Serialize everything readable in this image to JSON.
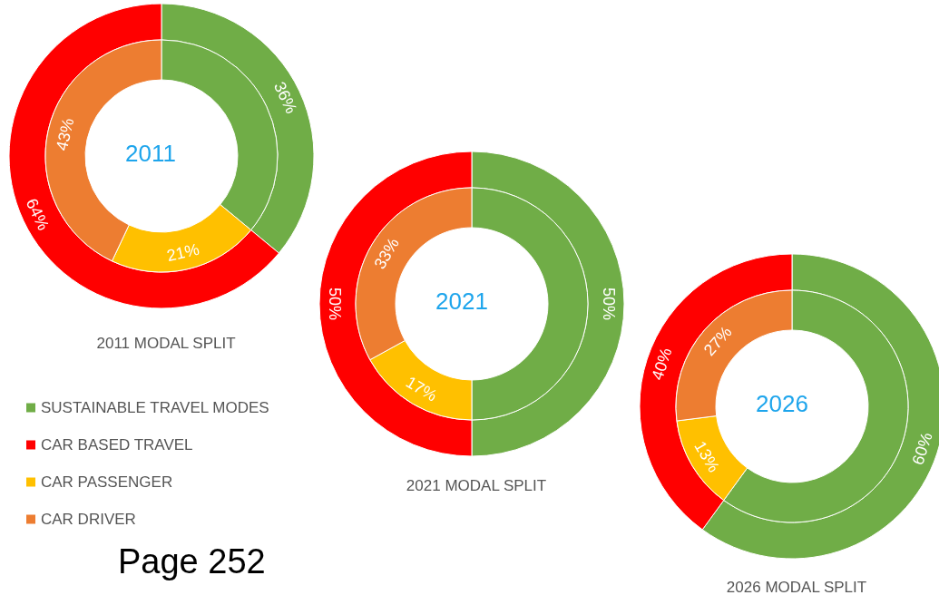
{
  "chart_data": [
    {
      "type": "donut",
      "title": "2011 MODAL SPLIT",
      "annotations": [
        "2011",
        "Page 252"
      ],
      "categories": [
        "SUSTAINABLE TRAVEL MODES",
        "CAR BASED TRAVEL",
        "CAR PASSENGER",
        "CAR DRIVER"
      ],
      "colors": [
        "#70ad47",
        "#ff0000",
        "#ffc000",
        "#ed7d31"
      ],
      "legend": "bottom left",
      "series": [
        {
          "values": [
            36,
            64,
            null,
            null
          ],
          "value_labels": [
            "36%",
            "64%",
            null,
            null
          ]
        },
        {
          "values": [
            36,
            null,
            21,
            43
          ],
          "value_labels": [
            null,
            null,
            "21%",
            "43%"
          ]
        }
      ]
    },
    {
      "type": "donut",
      "title": "2021 MODAL SPLIT",
      "annotations": [
        "2021"
      ],
      "categories": [
        null,
        null,
        null,
        null
      ],
      "colors": [
        "#70ad47",
        "#ff0000",
        "#ffc000",
        "#ed7d31"
      ],
      "series": [
        {
          "values": [
            50,
            50,
            null,
            null
          ],
          "value_labels": [
            "50%",
            "50%",
            null,
            null
          ]
        },
        {
          "values": [
            50,
            null,
            17,
            33
          ],
          "value_labels": [
            null,
            null,
            "17%",
            "33%"
          ]
        }
      ]
    },
    {
      "type": "donut",
      "title": "2026 MODAL SPLIT",
      "annotations": [
        "2026"
      ],
      "categories": [
        null,
        null,
        null,
        null
      ],
      "colors": [
        "#70ad47",
        "#ff0000",
        "#ffc000",
        "#ed7d31"
      ],
      "series": [
        {
          "values": [
            60,
            40,
            null,
            null
          ],
          "value_labels": [
            "60%",
            "40%",
            null,
            null
          ]
        },
        {
          "values": [
            60,
            null,
            13,
            27
          ],
          "value_labels": [
            null,
            null,
            "13%",
            "27%"
          ]
        }
      ]
    }
  ]
}
